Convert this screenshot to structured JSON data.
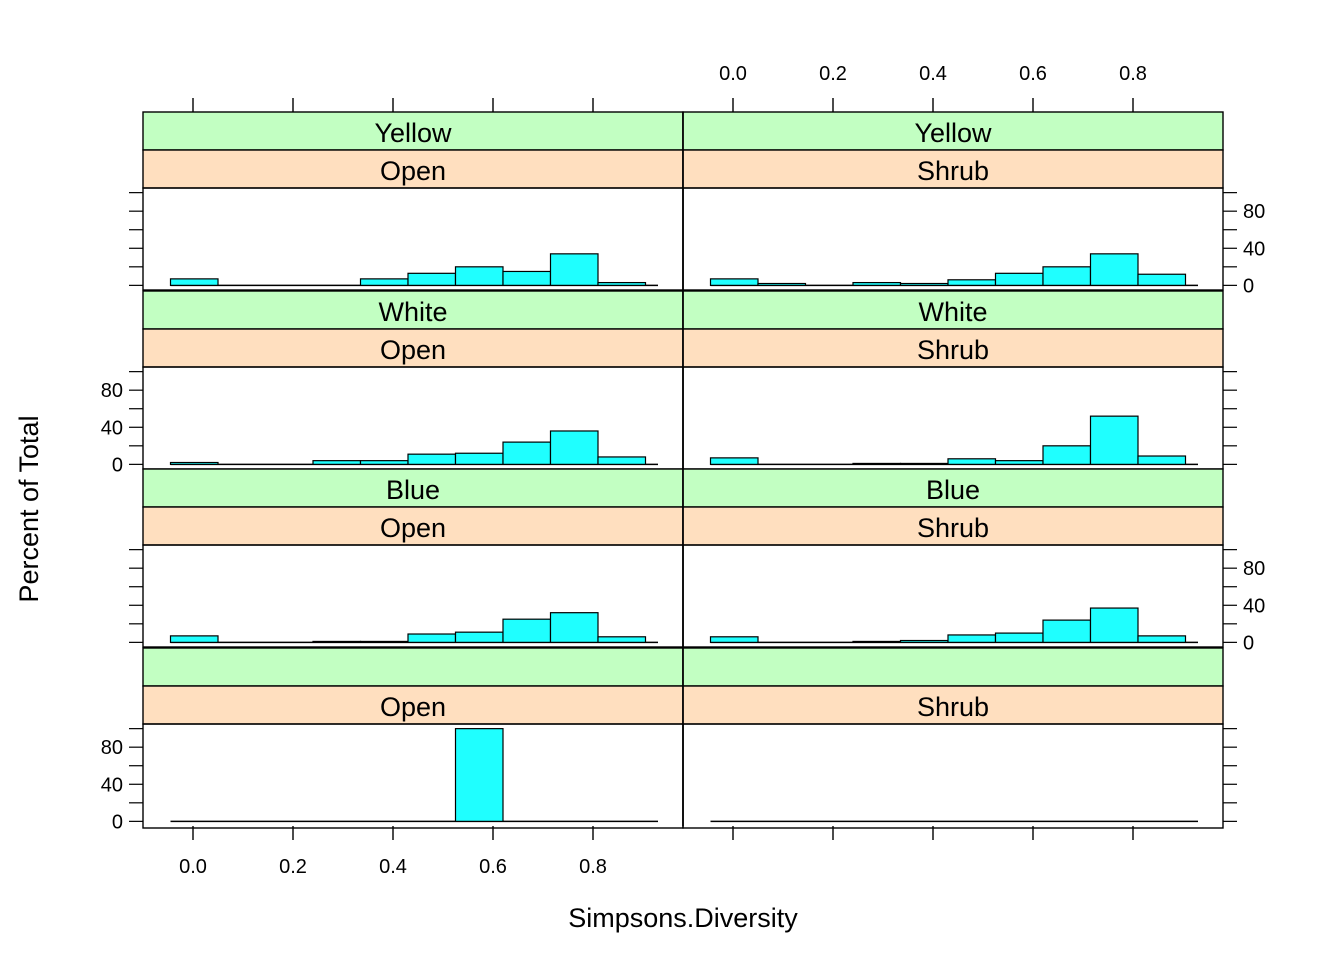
{
  "chart_data": {
    "type": "histogram",
    "xlabel": "Simpsons.Diversity",
    "ylabel": "Percent of Total",
    "xlim": [
      -0.1,
      0.98
    ],
    "ylim": [
      -5,
      105
    ],
    "xticks": [
      0.0,
      0.2,
      0.4,
      0.6,
      0.8
    ],
    "xtick_labels": [
      "0.0",
      "0.2",
      "0.4",
      "0.6",
      "0.8"
    ],
    "yticks": [
      0,
      40,
      80
    ],
    "ytick_labels": [
      "0",
      "40",
      "80"
    ],
    "bins": [
      -0.045,
      0.05,
      0.145,
      0.24,
      0.335,
      0.43,
      0.525,
      0.62,
      0.715,
      0.81,
      0.905
    ],
    "colors": {
      "bar_fill": "#1FFFFF",
      "strip_outer": "#C2FFC2",
      "strip_inner": "#FFDFBF"
    },
    "panels": [
      {
        "row": 0,
        "col": 0,
        "outer": "Yellow",
        "inner": "Open",
        "values": [
          7,
          0,
          0,
          0,
          7,
          13,
          20,
          15,
          34,
          3
        ]
      },
      {
        "row": 0,
        "col": 1,
        "outer": "Yellow",
        "inner": "Shrub",
        "values": [
          7,
          2,
          0,
          3,
          2,
          6,
          13,
          20,
          34,
          12
        ]
      },
      {
        "row": 1,
        "col": 0,
        "outer": "White",
        "inner": "Open",
        "values": [
          2,
          0,
          0,
          4,
          4,
          11,
          12,
          24,
          36,
          8
        ]
      },
      {
        "row": 1,
        "col": 1,
        "outer": "White",
        "inner": "Shrub",
        "values": [
          7,
          0,
          0,
          1,
          1,
          6,
          4,
          20,
          52,
          9
        ]
      },
      {
        "row": 2,
        "col": 0,
        "outer": "Blue",
        "inner": "Open",
        "values": [
          7,
          0,
          0,
          1,
          1,
          9,
          11,
          25,
          32,
          6
        ]
      },
      {
        "row": 2,
        "col": 1,
        "outer": "Blue",
        "inner": "Shrub",
        "values": [
          6,
          0,
          0,
          1,
          2,
          8,
          10,
          24,
          37,
          7
        ]
      },
      {
        "row": 3,
        "col": 0,
        "outer": "",
        "inner": "Open",
        "values": [
          0,
          0,
          0,
          0,
          0,
          0,
          100,
          0,
          0,
          0
        ]
      },
      {
        "row": 3,
        "col": 1,
        "outer": "",
        "inner": "Shrub",
        "values": [
          0,
          0,
          0,
          0,
          0,
          0,
          0,
          0,
          0,
          0
        ]
      }
    ]
  }
}
